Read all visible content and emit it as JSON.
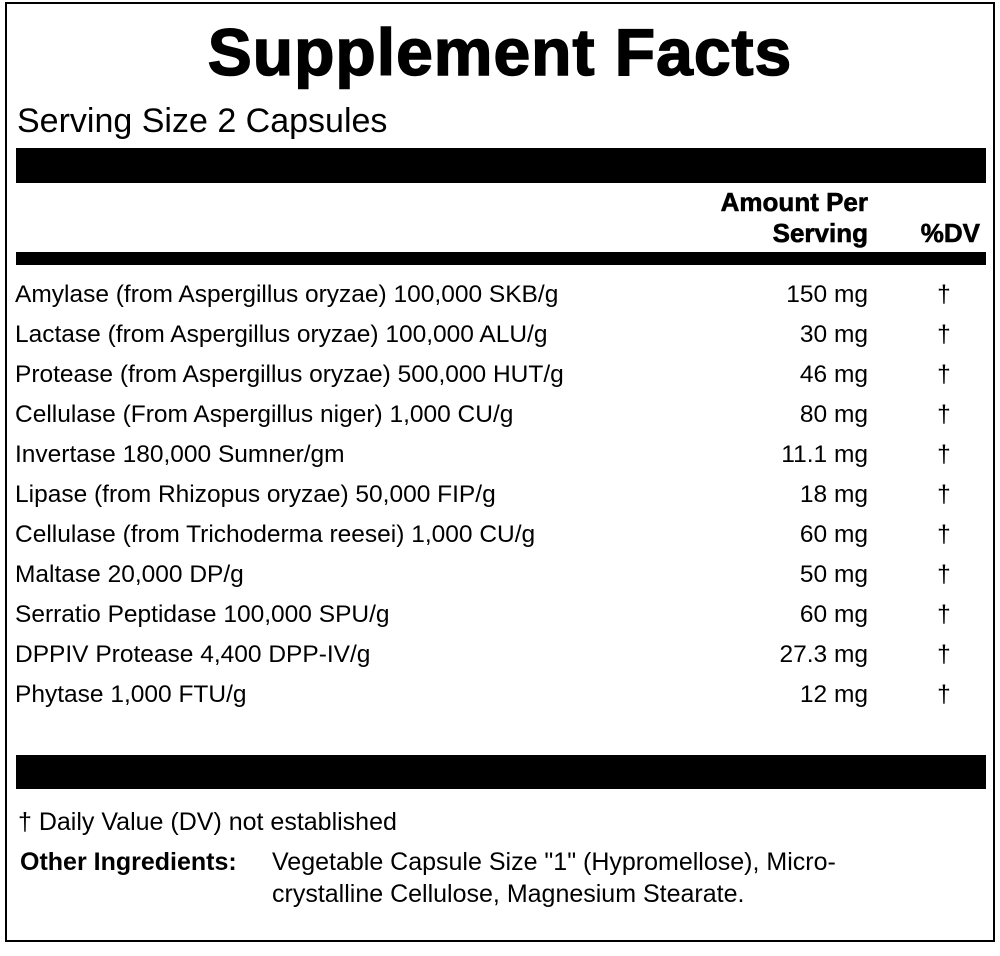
{
  "title": "Supplement Facts",
  "serving_size": "Serving Size 2 Capsules",
  "header": {
    "amount_lines": [
      "Amount Per",
      "Serving"
    ],
    "dv": "%DV"
  },
  "rows": [
    {
      "name": "Amylase (from Aspergillus oryzae) 100,000 SKB/g",
      "amount": "150 mg",
      "dv": "†"
    },
    {
      "name": "Lactase (from Aspergillus oryzae) 100,000 ALU/g",
      "amount": "30 mg",
      "dv": "†"
    },
    {
      "name": "Protease (from Aspergillus oryzae) 500,000 HUT/g",
      "amount": "46 mg",
      "dv": "†"
    },
    {
      "name": "Cellulase (From Aspergillus niger) 1,000 CU/g",
      "amount": "80 mg",
      "dv": "†"
    },
    {
      "name": "Invertase 180,000 Sumner/gm",
      "amount": "11.1 mg",
      "dv": "†"
    },
    {
      "name": "Lipase (from Rhizopus oryzae) 50,000 FIP/g",
      "amount": "18 mg",
      "dv": "†"
    },
    {
      "name": "Cellulase (from Trichoderma reesei) 1,000 CU/g",
      "amount": "60 mg",
      "dv": "†"
    },
    {
      "name": "Maltase 20,000 DP/g",
      "amount": "50 mg",
      "dv": "†"
    },
    {
      "name": "Serratio Peptidase 100,000 SPU/g",
      "amount": "60 mg",
      "dv": "†"
    },
    {
      "name": "DPPIV Protease 4,400 DPP-IV/g",
      "amount": "27.3 mg",
      "dv": "†"
    },
    {
      "name": "Phytase 1,000 FTU/g",
      "amount": "12 mg",
      "dv": "†"
    }
  ],
  "footnote": "† Daily Value (DV) not established",
  "other_ingredients": {
    "label": "Other Ingredients:",
    "lines": [
      "Vegetable Capsule Size \"1\" (Hypromellose), Micro-",
      "crystalline Cellulose, Magnesium Stearate."
    ]
  }
}
